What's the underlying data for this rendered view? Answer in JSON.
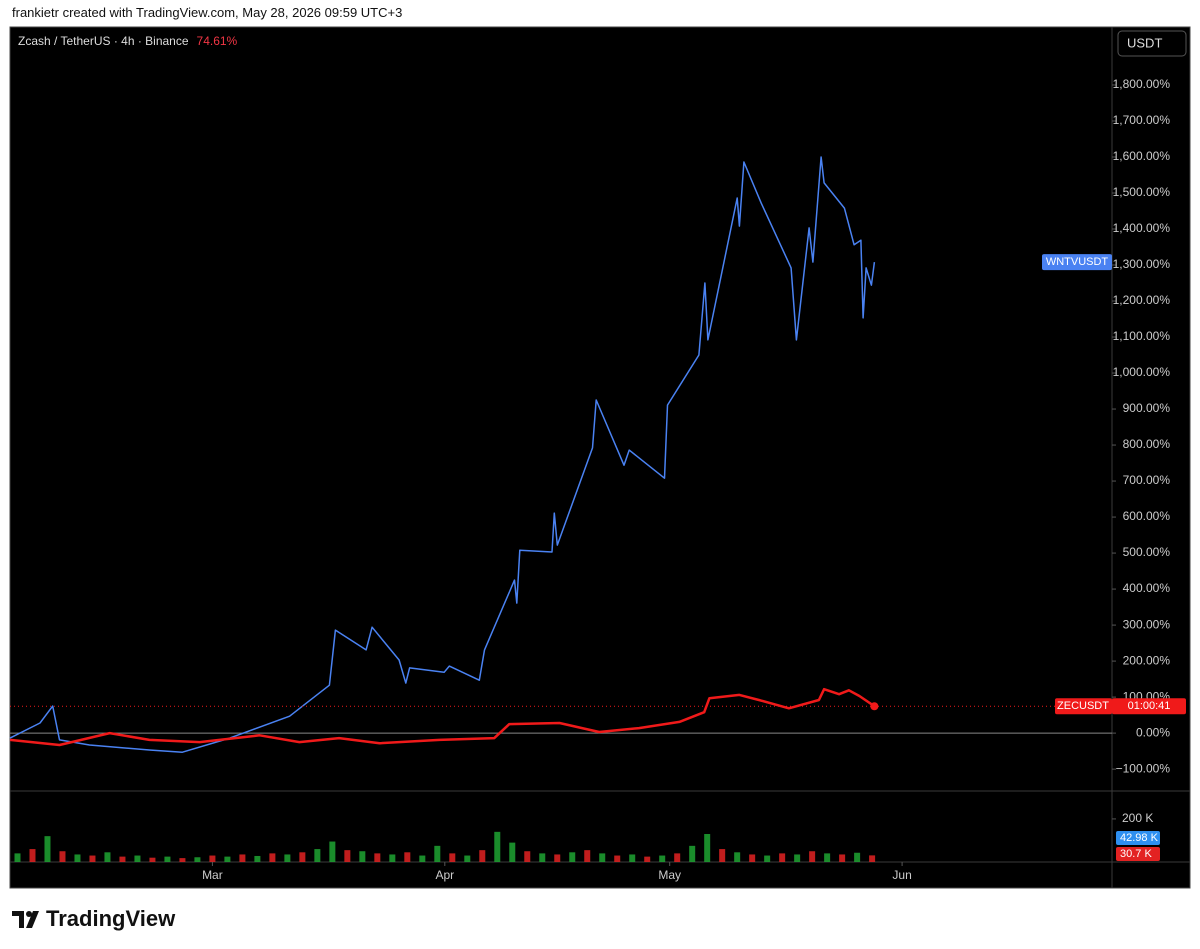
{
  "header": {
    "attribution": "frankietr created with TradingView.com, May 28, 2026 09:59 UTC+3"
  },
  "footer": {
    "logo_text": "TradingView"
  },
  "chart_data": [
    {
      "type": "line",
      "title": "Zcash / TetherUS · 4h · Binance",
      "change": {
        "value": 74.61,
        "label": "74.61%"
      },
      "axis_unit": "USDT",
      "countdown": "01:00:41",
      "xlim": [
        33,
        180
      ],
      "xticks": [
        {
          "value": 60,
          "label": "Mar"
        },
        {
          "value": 91,
          "label": "Apr"
        },
        {
          "value": 121,
          "label": "May"
        },
        {
          "value": 152,
          "label": "Jun"
        }
      ],
      "ylim": [
        -158,
        1961
      ],
      "yticks": [
        {
          "value": -100,
          "label": "−100.00%"
        },
        {
          "value": 0,
          "label": "0.00%"
        },
        {
          "value": 100,
          "label": "100.00%"
        },
        {
          "value": 200,
          "label": "200.00%"
        },
        {
          "value": 300,
          "label": "300.00%"
        },
        {
          "value": 400,
          "label": "400.00%"
        },
        {
          "value": 500,
          "label": "500.00%"
        },
        {
          "value": 600,
          "label": "600.00%"
        },
        {
          "value": 700,
          "label": "700.00%"
        },
        {
          "value": 800,
          "label": "800.00%"
        },
        {
          "value": 900,
          "label": "900.00%"
        },
        {
          "value": 1000,
          "label": "1,000.00%"
        },
        {
          "value": 1100,
          "label": "1,100.00%"
        },
        {
          "value": 1200,
          "label": "1,200.00%"
        },
        {
          "value": 1300,
          "label": "1,300.00%"
        },
        {
          "value": 1400,
          "label": "1,400.00%"
        },
        {
          "value": 1500,
          "label": "1,500.00%"
        },
        {
          "value": 1600,
          "label": "1,600.00%"
        },
        {
          "value": 1700,
          "label": "1,700.00%"
        },
        {
          "value": 1800,
          "label": "1,800.00%"
        }
      ],
      "series": [
        {
          "name": "WNTVUSDT",
          "color": "#4a82f2",
          "x": [
            33,
            37,
            38.7,
            39.6,
            43.6,
            51.6,
            56,
            62.3,
            70.3,
            75.6,
            76.4,
            80.5,
            81.3,
            84.9,
            85.8,
            86.3,
            90.9,
            91.6,
            95.6,
            96.3,
            100.3,
            100.6,
            101,
            105.3,
            105.6,
            106,
            110.7,
            111.2,
            114.9,
            115.6,
            120.3,
            120.7,
            124.9,
            125.7,
            126.1,
            130,
            130.3,
            130.9,
            133.2,
            137.2,
            137.9,
            139.6,
            140.1,
            141.2,
            141.6,
            144.3,
            145.6,
            146.5,
            146.8,
            147.2,
            147.9,
            148.3
          ],
          "values": [
            -14,
            28,
            75,
            -19,
            -33,
            -47,
            -53,
            -14,
            47,
            133,
            286,
            231,
            294,
            203,
            139,
            181,
            169,
            186,
            147,
            231,
            425,
            361,
            508,
            503,
            611,
            522,
            792,
            925,
            744,
            786,
            708,
            911,
            1050,
            1250,
            1092,
            1486,
            1408,
            1586,
            1472,
            1292,
            1092,
            1403,
            1308,
            1600,
            1528,
            1458,
            1356,
            1369,
            1153,
            1292,
            1244,
            1308
          ]
        },
        {
          "name": "ZECUSDT",
          "color": "#f01a1a",
          "x": [
            33,
            39.6,
            46.3,
            51.6,
            58.3,
            66.3,
            71.6,
            76.9,
            82.3,
            90.3,
            97.6,
            99.6,
            106.3,
            111.6,
            116.9,
            122.3,
            125.6,
            126.3,
            130.3,
            132.9,
            136.9,
            140.9,
            141.6,
            143.6,
            144.9,
            146.3,
            148.3
          ],
          "values": [
            -19,
            -33,
            0,
            -19,
            -25,
            -6,
            -25,
            -14,
            -28,
            -19,
            -14,
            25,
            28,
            3,
            14,
            31,
            58,
            97,
            106,
            92,
            69,
            92,
            122,
            108,
            119,
            103,
            74.61
          ]
        }
      ]
    },
    {
      "type": "volume",
      "xlim": [
        33,
        180
      ],
      "ylim": [
        0,
        325000
      ],
      "yticks": [
        {
          "value": 200000,
          "label": "200 K"
        }
      ],
      "x": [
        34,
        36,
        38,
        40,
        42,
        44,
        46,
        48,
        50,
        52,
        54,
        56,
        58,
        60,
        62,
        64,
        66,
        68,
        70,
        72,
        74,
        76,
        78,
        80,
        82,
        84,
        86,
        88,
        90,
        92,
        94,
        96,
        98,
        100,
        102,
        104,
        106,
        108,
        110,
        112,
        114,
        116,
        118,
        120,
        122,
        124,
        126,
        128,
        130,
        132,
        134,
        136,
        138,
        140,
        142,
        144,
        146,
        148
      ],
      "values": [
        40000,
        60000,
        120000,
        50000,
        35000,
        30000,
        45000,
        25000,
        30000,
        20000,
        25000,
        18000,
        22000,
        30000,
        25000,
        35000,
        28000,
        40000,
        35000,
        45000,
        60000,
        95000,
        55000,
        50000,
        40000,
        35000,
        45000,
        30000,
        75000,
        40000,
        30000,
        55000,
        140000,
        90000,
        50000,
        40000,
        35000,
        45000,
        55000,
        40000,
        30000,
        35000,
        25000,
        30000,
        40000,
        75000,
        130000,
        60000,
        45000,
        35000,
        30000,
        40000,
        35000,
        50000,
        40000,
        35000,
        42980,
        30700
      ],
      "colors": [
        "#1fa532",
        "#e32222",
        "#1fa532",
        "#e32222",
        "#1fa532",
        "#e32222",
        "#1fa532",
        "#e32222",
        "#1fa532",
        "#e32222",
        "#1fa532",
        "#e32222",
        "#1fa532",
        "#e32222",
        "#1fa532",
        "#e32222",
        "#1fa532",
        "#e32222",
        "#1fa532",
        "#e32222",
        "#1fa532",
        "#1fa532",
        "#e32222",
        "#1fa532",
        "#e32222",
        "#1fa532",
        "#e32222",
        "#1fa532",
        "#1fa532",
        "#e32222",
        "#1fa532",
        "#e32222",
        "#1fa532",
        "#1fa532",
        "#e32222",
        "#1fa532",
        "#e32222",
        "#1fa532",
        "#e32222",
        "#1fa532",
        "#e32222",
        "#1fa532",
        "#e32222",
        "#1fa532",
        "#e32222",
        "#1fa532",
        "#1fa532",
        "#e32222",
        "#1fa532",
        "#e32222",
        "#1fa532",
        "#e32222",
        "#1fa532",
        "#e32222",
        "#1fa532",
        "#e32222",
        "#1fa532",
        "#e32222"
      ],
      "markers": [
        {
          "value": 42980,
          "label": "42.98 K",
          "color": "#2e8ff0"
        },
        {
          "value": 30700,
          "label": "30.7 K",
          "color": "#e32222"
        }
      ]
    }
  ]
}
